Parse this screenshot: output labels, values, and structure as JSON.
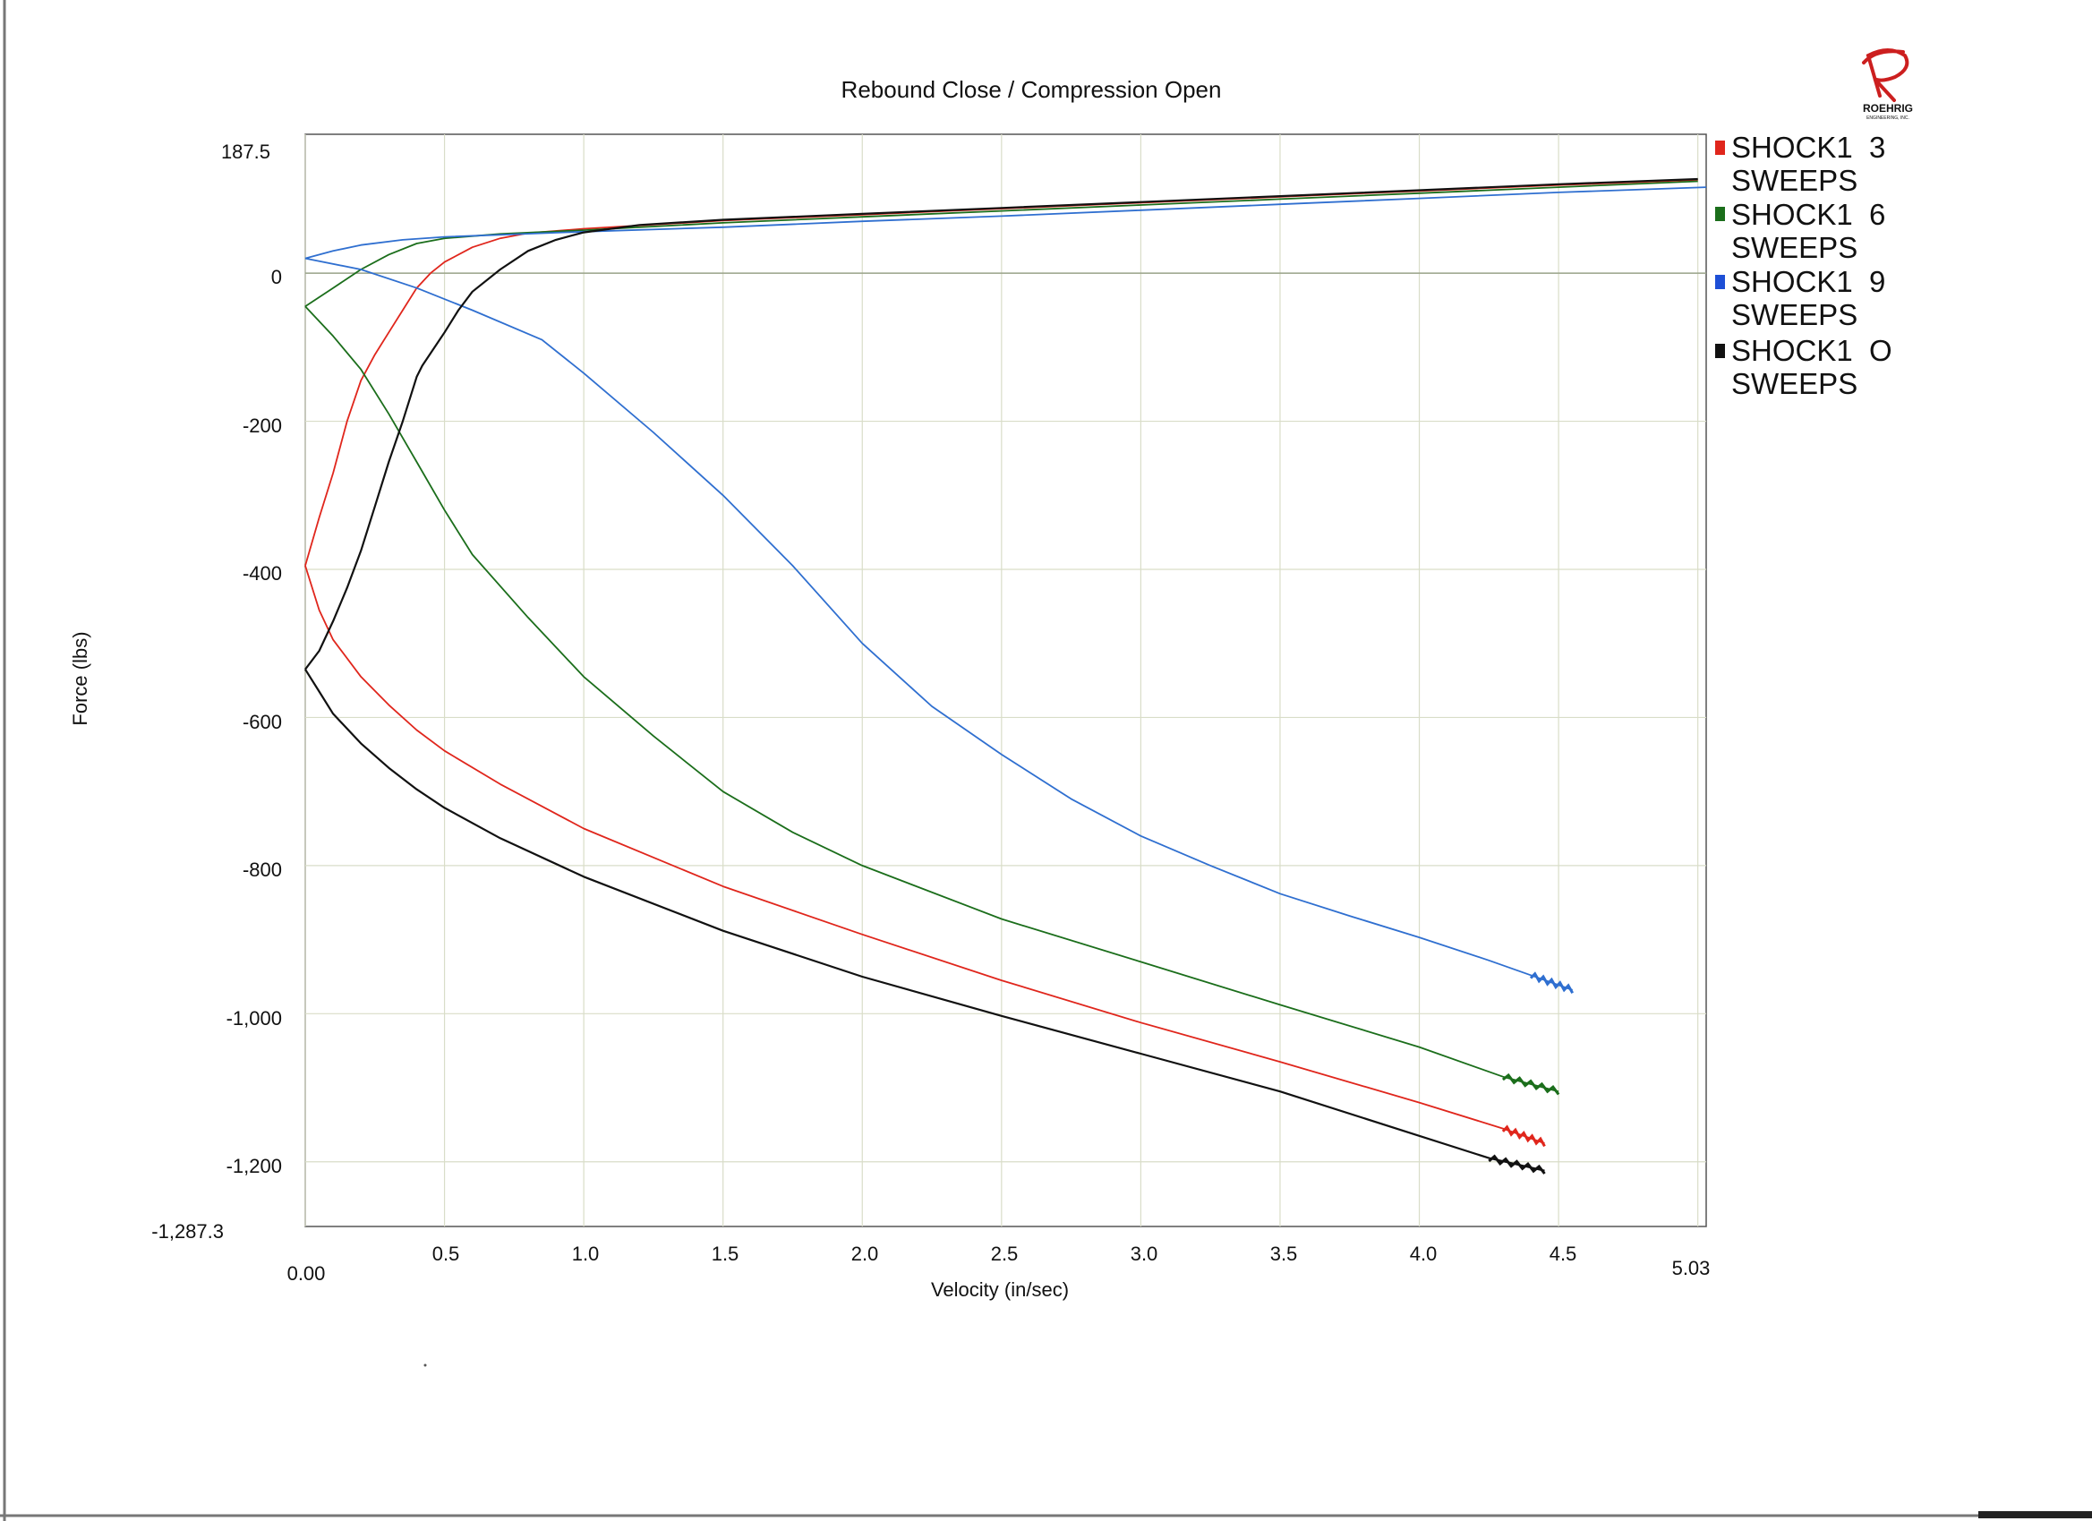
{
  "logo": {
    "brand": "ROEHRIG",
    "sub": "ENGINEERING, INC."
  },
  "chart_data": {
    "type": "line",
    "title": "Rebound Close / Compression Open",
    "xlabel": "Velocity (in/sec)",
    "ylabel": "Force (lbs)",
    "xlim": [
      0,
      5.03
    ],
    "ylim": [
      -1287.3,
      187.5
    ],
    "x_ticks": [
      "0.00",
      "0.5",
      "1.0",
      "1.5",
      "2.0",
      "2.5",
      "3.0",
      "3.5",
      "4.0",
      "4.5",
      "5.03"
    ],
    "y_ticks": [
      "187.5",
      "0",
      "-200",
      "-400",
      "-600",
      "-800",
      "-1,000",
      "-1,200",
      "-1,287.3"
    ],
    "grid": true,
    "legend_position": "right",
    "series": [
      {
        "name": "SHOCK1 3 SWEEPS",
        "color": "#e0261c",
        "rebound": [
          [
            0,
            -395
          ],
          [
            0.05,
            -455
          ],
          [
            0.1,
            -495
          ],
          [
            0.2,
            -545
          ],
          [
            0.3,
            -583
          ],
          [
            0.4,
            -617
          ],
          [
            0.5,
            -645
          ],
          [
            0.7,
            -690
          ],
          [
            1.0,
            -750
          ],
          [
            1.5,
            -828
          ],
          [
            2.0,
            -893
          ],
          [
            2.5,
            -955
          ],
          [
            3.0,
            -1012
          ],
          [
            3.5,
            -1065
          ],
          [
            4.0,
            -1120
          ],
          [
            4.3,
            -1155
          ],
          [
            4.45,
            -1175
          ]
        ],
        "compression": [
          [
            0,
            -395
          ],
          [
            0.05,
            -330
          ],
          [
            0.1,
            -270
          ],
          [
            0.15,
            -200
          ],
          [
            0.2,
            -145
          ],
          [
            0.25,
            -110
          ],
          [
            0.3,
            -80
          ],
          [
            0.35,
            -50
          ],
          [
            0.4,
            -20
          ],
          [
            0.45,
            0
          ],
          [
            0.5,
            15
          ],
          [
            0.6,
            35
          ],
          [
            0.7,
            47
          ],
          [
            0.8,
            54
          ],
          [
            1.0,
            60
          ],
          [
            1.5,
            71
          ],
          [
            2.0,
            79
          ],
          [
            2.5,
            87
          ],
          [
            3.0,
            95
          ],
          [
            3.5,
            103
          ],
          [
            4.0,
            111
          ],
          [
            4.5,
            119
          ],
          [
            5.0,
            126
          ]
        ]
      },
      {
        "name": "SHOCK1 6 SWEEPS",
        "color": "#1b6e1b",
        "rebound": [
          [
            0,
            -45
          ],
          [
            0.1,
            -85
          ],
          [
            0.2,
            -130
          ],
          [
            0.3,
            -190
          ],
          [
            0.4,
            -255
          ],
          [
            0.5,
            -320
          ],
          [
            0.6,
            -380
          ],
          [
            0.8,
            -465
          ],
          [
            1.0,
            -545
          ],
          [
            1.25,
            -625
          ],
          [
            1.5,
            -700
          ],
          [
            1.75,
            -755
          ],
          [
            2.0,
            -800
          ],
          [
            2.5,
            -872
          ],
          [
            3.0,
            -930
          ],
          [
            3.5,
            -988
          ],
          [
            4.0,
            -1045
          ],
          [
            4.3,
            -1085
          ],
          [
            4.5,
            -1105
          ]
        ],
        "compression": [
          [
            0,
            -45
          ],
          [
            0.1,
            -20
          ],
          [
            0.2,
            5
          ],
          [
            0.3,
            25
          ],
          [
            0.4,
            40
          ],
          [
            0.5,
            47
          ],
          [
            0.7,
            53
          ],
          [
            1.0,
            58
          ],
          [
            1.5,
            68
          ],
          [
            2.0,
            76
          ],
          [
            2.5,
            84
          ],
          [
            3.0,
            92
          ],
          [
            3.5,
            100
          ],
          [
            4.0,
            108
          ],
          [
            4.5,
            116
          ],
          [
            5.0,
            124
          ]
        ]
      },
      {
        "name": "SHOCK1 9 SWEEPS",
        "color": "#2f6fd0",
        "rebound": [
          [
            0,
            20
          ],
          [
            0.2,
            5
          ],
          [
            0.4,
            -20
          ],
          [
            0.6,
            -50
          ],
          [
            0.85,
            -90
          ],
          [
            1.0,
            -135
          ],
          [
            1.25,
            -215
          ],
          [
            1.5,
            -300
          ],
          [
            1.75,
            -395
          ],
          [
            2.0,
            -500
          ],
          [
            2.25,
            -585
          ],
          [
            2.5,
            -650
          ],
          [
            2.75,
            -710
          ],
          [
            3.0,
            -760
          ],
          [
            3.25,
            -800
          ],
          [
            3.5,
            -838
          ],
          [
            3.75,
            -868
          ],
          [
            4.0,
            -897
          ],
          [
            4.25,
            -928
          ],
          [
            4.4,
            -948
          ],
          [
            4.55,
            -968
          ]
        ],
        "compression": [
          [
            0,
            20
          ],
          [
            0.1,
            30
          ],
          [
            0.2,
            38
          ],
          [
            0.35,
            45
          ],
          [
            0.5,
            49
          ],
          [
            1.0,
            56
          ],
          [
            1.5,
            62
          ],
          [
            2.0,
            70
          ],
          [
            2.5,
            77
          ],
          [
            3.0,
            85
          ],
          [
            3.5,
            93
          ],
          [
            4.0,
            101
          ],
          [
            4.5,
            109
          ],
          [
            5.03,
            116
          ]
        ]
      },
      {
        "name": "SHOCK1 O SWEEPS",
        "color": "#111111",
        "rebound": [
          [
            0,
            -535
          ],
          [
            0.05,
            -565
          ],
          [
            0.1,
            -595
          ],
          [
            0.2,
            -635
          ],
          [
            0.3,
            -668
          ],
          [
            0.4,
            -697
          ],
          [
            0.5,
            -722
          ],
          [
            0.7,
            -763
          ],
          [
            1.0,
            -815
          ],
          [
            1.5,
            -888
          ],
          [
            2.0,
            -950
          ],
          [
            2.5,
            -1003
          ],
          [
            3.0,
            -1054
          ],
          [
            3.5,
            -1105
          ],
          [
            4.0,
            -1165
          ],
          [
            4.25,
            -1195
          ],
          [
            4.45,
            -1212
          ]
        ],
        "compression": [
          [
            0,
            -535
          ],
          [
            0.05,
            -510
          ],
          [
            0.1,
            -470
          ],
          [
            0.15,
            -425
          ],
          [
            0.2,
            -375
          ],
          [
            0.25,
            -315
          ],
          [
            0.3,
            -255
          ],
          [
            0.35,
            -200
          ],
          [
            0.4,
            -140
          ],
          [
            0.42,
            -125
          ],
          [
            0.5,
            -80
          ],
          [
            0.55,
            -50
          ],
          [
            0.6,
            -25
          ],
          [
            0.7,
            5
          ],
          [
            0.8,
            30
          ],
          [
            0.9,
            45
          ],
          [
            1.0,
            55
          ],
          [
            1.2,
            65
          ],
          [
            1.5,
            72
          ],
          [
            2.0,
            80
          ],
          [
            2.5,
            88
          ],
          [
            3.0,
            96
          ],
          [
            3.5,
            104
          ],
          [
            4.0,
            112
          ],
          [
            4.5,
            120
          ],
          [
            5.0,
            127
          ]
        ]
      }
    ]
  }
}
